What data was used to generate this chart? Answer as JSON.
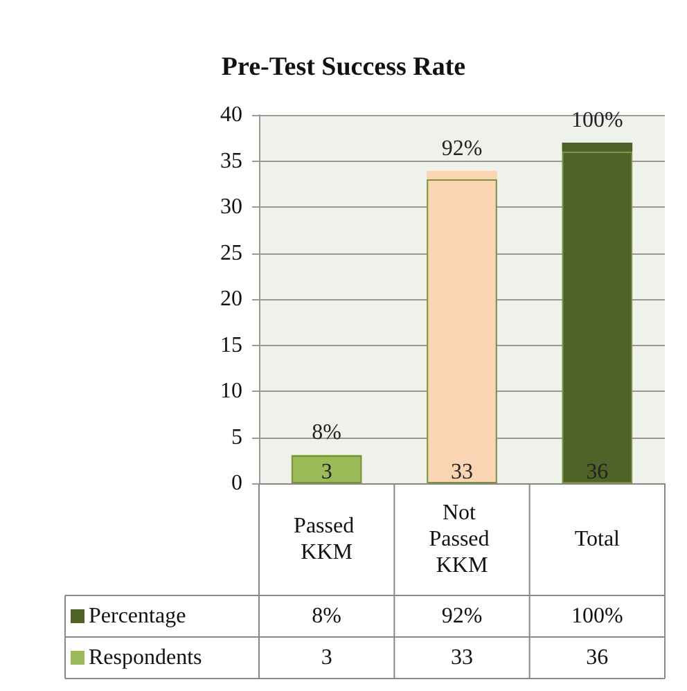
{
  "chart_data": {
    "type": "bar",
    "title": "Pre-Test Success Rate",
    "categories": [
      "Passed KKM",
      "Not Passed KKM",
      "Total"
    ],
    "stacked": true,
    "series": [
      {
        "name": "Respondents",
        "color": "#9bbb59",
        "colors": [
          "#9bbb59",
          "#fbd4b4",
          "#4f6228"
        ],
        "values": [
          3,
          33,
          36
        ],
        "value_labels": [
          "3",
          "33",
          "36"
        ]
      },
      {
        "name": "Percentage",
        "color": "#4f6228",
        "colors": [
          "#9bbb59",
          "#fbd4b4",
          "#4f6228"
        ],
        "values": [
          0.08,
          0.92,
          1
        ],
        "value_labels": [
          "8%",
          "92%",
          "100%"
        ]
      }
    ],
    "ylim": [
      0,
      40
    ],
    "yticks": [
      0,
      5,
      10,
      15,
      20,
      25,
      30,
      35,
      40
    ],
    "grid": "y",
    "legend": "bottom"
  }
}
